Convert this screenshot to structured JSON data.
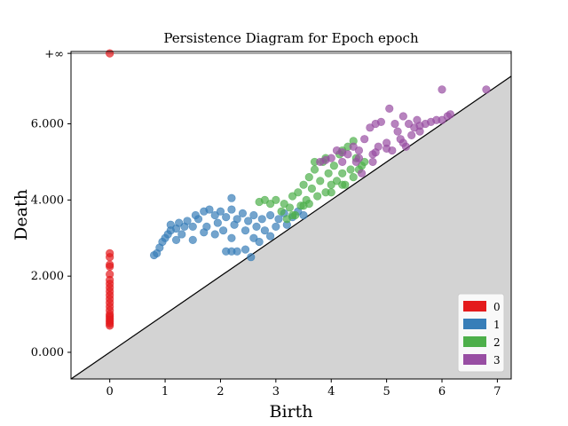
{
  "chart_data": {
    "type": "scatter",
    "title": "Persistence Diagram for Epoch epoch",
    "xlabel": "Birth",
    "ylabel": "Death",
    "xlim": [
      -0.7,
      7.25
    ],
    "ylim": [
      -0.7,
      7.9
    ],
    "infinity_label": "+∞",
    "infinity_y": 7.85,
    "x_ticks": [
      0,
      1,
      2,
      3,
      4,
      5,
      6,
      7
    ],
    "x_tick_labels": [
      "0",
      "1",
      "2",
      "3",
      "4",
      "5",
      "6",
      "7"
    ],
    "y_ticks": [
      0,
      2,
      4,
      6
    ],
    "y_tick_labels": [
      "0.000",
      "2.000",
      "4.000",
      "6.000"
    ],
    "diagonal": true,
    "legend_position": "bottom-right",
    "series": [
      {
        "name": "0",
        "color": "#e41a1c",
        "points": [
          [
            0,
            7.85
          ],
          [
            0,
            2.6
          ],
          [
            0,
            2.5
          ],
          [
            0,
            2.3
          ],
          [
            0,
            2.25
          ],
          [
            0,
            2.05
          ],
          [
            0,
            1.9
          ],
          [
            0,
            1.8
          ],
          [
            0,
            1.7
          ],
          [
            0,
            1.6
          ],
          [
            0,
            1.5
          ],
          [
            0,
            1.4
          ],
          [
            0,
            1.3
          ],
          [
            0,
            1.2
          ],
          [
            0,
            1.1
          ],
          [
            0,
            1.0
          ],
          [
            0,
            0.95
          ],
          [
            0,
            0.9
          ],
          [
            0,
            0.85
          ],
          [
            0,
            0.8
          ],
          [
            0,
            0.75
          ],
          [
            0,
            0.7
          ]
        ]
      },
      {
        "name": "1",
        "color": "#377eb8",
        "points": [
          [
            0.8,
            2.55
          ],
          [
            0.85,
            2.6
          ],
          [
            0.9,
            2.75
          ],
          [
            0.95,
            2.9
          ],
          [
            1.0,
            3.0
          ],
          [
            1.05,
            3.1
          ],
          [
            1.1,
            3.2
          ],
          [
            1.1,
            3.35
          ],
          [
            1.2,
            3.25
          ],
          [
            1.25,
            3.4
          ],
          [
            1.3,
            3.1
          ],
          [
            1.35,
            3.3
          ],
          [
            1.4,
            3.45
          ],
          [
            1.5,
            3.3
          ],
          [
            1.55,
            3.6
          ],
          [
            1.6,
            3.5
          ],
          [
            1.7,
            3.7
          ],
          [
            1.75,
            3.3
          ],
          [
            1.8,
            3.75
          ],
          [
            1.9,
            3.6
          ],
          [
            1.95,
            3.4
          ],
          [
            2.0,
            3.7
          ],
          [
            2.05,
            3.2
          ],
          [
            2.1,
            3.55
          ],
          [
            2.2,
            3.75
          ],
          [
            2.2,
            4.05
          ],
          [
            2.25,
            3.35
          ],
          [
            2.3,
            3.5
          ],
          [
            2.4,
            3.65
          ],
          [
            2.45,
            3.2
          ],
          [
            2.5,
            3.45
          ],
          [
            2.6,
            3.6
          ],
          [
            2.65,
            3.3
          ],
          [
            2.7,
            2.9
          ],
          [
            2.75,
            3.5
          ],
          [
            2.8,
            3.2
          ],
          [
            2.9,
            3.6
          ],
          [
            3.0,
            3.3
          ],
          [
            3.05,
            3.5
          ],
          [
            3.15,
            3.65
          ],
          [
            3.2,
            3.35
          ],
          [
            3.3,
            3.55
          ],
          [
            3.4,
            3.7
          ],
          [
            3.5,
            3.6
          ],
          [
            2.1,
            2.65
          ],
          [
            2.2,
            2.65
          ],
          [
            2.3,
            2.65
          ],
          [
            2.45,
            2.7
          ],
          [
            2.55,
            2.5
          ],
          [
            1.2,
            2.95
          ],
          [
            1.5,
            2.95
          ],
          [
            1.7,
            3.15
          ],
          [
            1.9,
            3.1
          ],
          [
            2.2,
            3.0
          ],
          [
            2.6,
            3.0
          ],
          [
            2.9,
            3.05
          ]
        ]
      },
      {
        "name": "2",
        "color": "#4daf4a",
        "points": [
          [
            2.7,
            3.95
          ],
          [
            2.8,
            4.0
          ],
          [
            2.9,
            3.9
          ],
          [
            3.0,
            4.0
          ],
          [
            3.1,
            3.7
          ],
          [
            3.15,
            3.9
          ],
          [
            3.2,
            3.5
          ],
          [
            3.25,
            3.8
          ],
          [
            3.3,
            4.1
          ],
          [
            3.35,
            3.6
          ],
          [
            3.4,
            4.2
          ],
          [
            3.45,
            3.85
          ],
          [
            3.5,
            4.4
          ],
          [
            3.55,
            4.0
          ],
          [
            3.6,
            4.6
          ],
          [
            3.6,
            3.9
          ],
          [
            3.65,
            4.3
          ],
          [
            3.7,
            4.8
          ],
          [
            3.75,
            4.1
          ],
          [
            3.8,
            4.5
          ],
          [
            3.85,
            5.0
          ],
          [
            3.9,
            4.2
          ],
          [
            3.95,
            4.7
          ],
          [
            4.0,
            4.4
          ],
          [
            4.05,
            4.9
          ],
          [
            4.1,
            4.5
          ],
          [
            4.15,
            5.2
          ],
          [
            4.2,
            4.7
          ],
          [
            4.25,
            4.4
          ],
          [
            4.3,
            5.4
          ],
          [
            4.35,
            4.8
          ],
          [
            4.4,
            4.6
          ],
          [
            4.45,
            5.1
          ],
          [
            4.5,
            4.8
          ],
          [
            4.55,
            4.9
          ],
          [
            4.6,
            5.0
          ],
          [
            3.7,
            5.0
          ],
          [
            3.9,
            5.1
          ],
          [
            4.2,
            5.3
          ],
          [
            4.4,
            5.55
          ],
          [
            4.0,
            4.2
          ],
          [
            3.5,
            3.85
          ],
          [
            3.3,
            3.6
          ],
          [
            4.2,
            4.4
          ]
        ]
      },
      {
        "name": "3",
        "color": "#984ea3",
        "points": [
          [
            3.8,
            5.0
          ],
          [
            3.9,
            5.05
          ],
          [
            4.0,
            5.1
          ],
          [
            4.1,
            5.3
          ],
          [
            4.2,
            5.0
          ],
          [
            4.3,
            5.2
          ],
          [
            4.4,
            5.4
          ],
          [
            4.45,
            5.0
          ],
          [
            4.5,
            5.3
          ],
          [
            4.55,
            4.7
          ],
          [
            4.6,
            5.6
          ],
          [
            4.7,
            5.9
          ],
          [
            4.75,
            5.2
          ],
          [
            4.8,
            6.0
          ],
          [
            4.85,
            5.4
          ],
          [
            4.9,
            6.05
          ],
          [
            5.0,
            5.5
          ],
          [
            5.05,
            6.4
          ],
          [
            5.1,
            5.3
          ],
          [
            5.15,
            6.0
          ],
          [
            5.2,
            5.8
          ],
          [
            5.25,
            5.6
          ],
          [
            5.3,
            6.2
          ],
          [
            5.35,
            5.4
          ],
          [
            5.4,
            6.0
          ],
          [
            5.45,
            5.7
          ],
          [
            5.5,
            5.9
          ],
          [
            5.55,
            6.1
          ],
          [
            5.6,
            5.8
          ],
          [
            5.7,
            6.0
          ],
          [
            5.8,
            6.05
          ],
          [
            5.9,
            6.1
          ],
          [
            6.0,
            6.1
          ],
          [
            6.1,
            6.2
          ],
          [
            6.15,
            6.25
          ],
          [
            6.0,
            6.9
          ],
          [
            6.8,
            6.9
          ],
          [
            4.5,
            5.1
          ],
          [
            4.8,
            5.25
          ],
          [
            5.0,
            5.35
          ],
          [
            5.3,
            5.5
          ],
          [
            4.2,
            5.25
          ],
          [
            5.6,
            5.95
          ],
          [
            4.75,
            5.0
          ]
        ]
      }
    ]
  }
}
